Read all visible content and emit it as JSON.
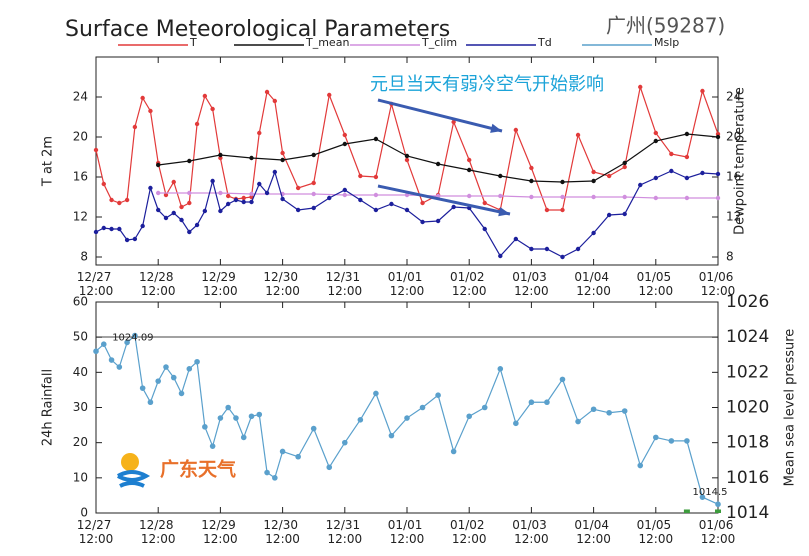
{
  "chart_data": [
    {
      "type": "line",
      "title": "Surface Meteorological Parameters",
      "subtitle": "广州(59287)",
      "annotation": "元旦当天有弱冷空气开始影响",
      "ylabel": "T at 2m",
      "y2label": "Dewpoint temperature",
      "xlim": [
        0,
        10
      ],
      "xticks": [
        {
          "value": 0,
          "label": "12/27 12:00"
        },
        {
          "value": 1,
          "label": "12/28 12:00"
        },
        {
          "value": 2,
          "label": "12/29 12:00"
        },
        {
          "value": 3,
          "label": "12/30 12:00"
        },
        {
          "value": 4,
          "label": "12/31 12:00"
        },
        {
          "value": 5,
          "label": "01/01 12:00"
        },
        {
          "value": 6,
          "label": "01/02 12:00"
        },
        {
          "value": 7,
          "label": "01/03 12:00"
        },
        {
          "value": 8,
          "label": "01/04 12:00"
        },
        {
          "value": 9,
          "label": "01/05 12:00"
        },
        {
          "value": 10,
          "label": "01/06 12:00"
        }
      ],
      "ylim": [
        7.2,
        28
      ],
      "yticks": [
        8,
        12,
        16,
        20,
        24
      ],
      "y2lim": [
        7.2,
        28
      ],
      "y2ticks": [
        8,
        12,
        16,
        20,
        24
      ],
      "series": [
        {
          "name": "T",
          "color": "#e23a3a",
          "x": [
            0,
            0.125,
            0.25,
            0.375,
            0.5,
            0.625,
            0.75,
            0.875,
            1,
            1.125,
            1.25,
            1.375,
            1.5,
            1.625,
            1.75,
            1.875,
            2,
            2.125,
            2.25,
            2.375,
            2.5,
            2.625,
            2.75,
            2.875,
            3,
            3.25,
            3.5,
            3.75,
            4,
            4.25,
            4.5,
            4.75,
            5,
            5.25,
            5.5,
            5.75,
            6,
            6.25,
            6.5,
            6.75,
            7,
            7.25,
            7.5,
            7.75,
            8,
            8.25,
            8.5,
            8.75,
            9,
            9.25,
            9.5,
            9.75,
            10
          ],
          "values": [
            18.7,
            15.3,
            13.7,
            13.4,
            13.7,
            21.0,
            23.9,
            22.6,
            17.4,
            14.2,
            15.5,
            13.0,
            13.4,
            21.3,
            24.1,
            22.8,
            17.9,
            14.1,
            13.8,
            13.9,
            14.0,
            20.4,
            24.5,
            23.6,
            18.4,
            14.9,
            15.4,
            24.2,
            20.2,
            16.1,
            16.0,
            23.3,
            17.7,
            13.4,
            14.2,
            21.5,
            17.7,
            13.4,
            12.7,
            20.7,
            16.9,
            12.7,
            12.7,
            20.2,
            16.5,
            16.1,
            17.0,
            25.0,
            20.4,
            18.3,
            18.0,
            24.6,
            20.3
          ]
        },
        {
          "name": "T_mean",
          "color": "#111111",
          "x": [
            1,
            1.5,
            2,
            2.5,
            3,
            3.5,
            4,
            4.5,
            5,
            5.5,
            6,
            6.5,
            7,
            7.5,
            8,
            8.5,
            9,
            9.5,
            10
          ],
          "values": [
            17.2,
            17.6,
            18.2,
            17.9,
            17.7,
            18.2,
            19.3,
            19.8,
            18.1,
            17.3,
            16.7,
            16.1,
            15.6,
            15.5,
            15.6,
            17.4,
            19.6,
            20.3,
            20.0
          ]
        },
        {
          "name": "T_clim",
          "color": "#d08ede",
          "x": [
            1,
            1.5,
            2,
            2.5,
            3,
            3.5,
            4,
            4.5,
            5,
            5.5,
            6,
            6.5,
            7,
            7.5,
            8,
            8.5,
            9,
            9.5,
            10
          ],
          "values": [
            14.4,
            14.4,
            14.4,
            14.3,
            14.3,
            14.3,
            14.2,
            14.2,
            14.2,
            14.1,
            14.1,
            14.1,
            14.0,
            14.0,
            14.0,
            14.0,
            13.9,
            13.9,
            13.9
          ]
        },
        {
          "name": "Td",
          "color": "#1c1f9c",
          "x": [
            0,
            0.125,
            0.25,
            0.375,
            0.5,
            0.625,
            0.75,
            0.875,
            1,
            1.125,
            1.25,
            1.375,
            1.5,
            1.625,
            1.75,
            1.875,
            2,
            2.125,
            2.25,
            2.375,
            2.5,
            2.625,
            2.75,
            2.875,
            3,
            3.25,
            3.5,
            3.75,
            4,
            4.25,
            4.5,
            4.75,
            5,
            5.25,
            5.5,
            5.75,
            6,
            6.25,
            6.5,
            6.75,
            7,
            7.25,
            7.5,
            7.75,
            8,
            8.25,
            8.5,
            8.75,
            9,
            9.25,
            9.5,
            9.75,
            10
          ],
          "values": [
            10.5,
            10.9,
            10.8,
            10.8,
            9.7,
            9.8,
            11.1,
            14.9,
            12.7,
            11.9,
            12.4,
            11.7,
            10.5,
            11.2,
            12.6,
            15.6,
            12.6,
            13.3,
            13.7,
            13.5,
            13.5,
            15.3,
            14.4,
            16.5,
            13.8,
            12.7,
            12.9,
            13.9,
            14.7,
            13.7,
            12.7,
            13.3,
            12.7,
            11.5,
            11.6,
            13.0,
            12.9,
            10.8,
            8.1,
            9.8,
            8.8,
            8.8,
            8.0,
            8.8,
            10.4,
            12.2,
            12.3,
            15.2,
            15.9,
            16.6,
            15.9,
            16.4,
            16.3
          ]
        }
      ]
    },
    {
      "type": "line",
      "ylabel": "24h Rainfall",
      "y2label": "Mean sea level pressure",
      "max_label": "1024.09",
      "min_label": "1014.5",
      "xlim": [
        0,
        10
      ],
      "xticks": [
        {
          "value": 0,
          "label": "12/27 12:00"
        },
        {
          "value": 1,
          "label": "12/28 12:00"
        },
        {
          "value": 2,
          "label": "12/29 12:00"
        },
        {
          "value": 3,
          "label": "12/30 12:00"
        },
        {
          "value": 4,
          "label": "12/31 12:00"
        },
        {
          "value": 5,
          "label": "01/01 12:00"
        },
        {
          "value": 6,
          "label": "01/02 12:00"
        },
        {
          "value": 7,
          "label": "01/03 12:00"
        },
        {
          "value": 8,
          "label": "01/04 12:00"
        },
        {
          "value": 9,
          "label": "01/05 12:00"
        },
        {
          "value": 10,
          "label": "01/06 12:00"
        }
      ],
      "ylim": [
        0,
        60
      ],
      "yticks": [
        0,
        10,
        20,
        30,
        40,
        50,
        60
      ],
      "y2lim": [
        1014,
        1026
      ],
      "y2ticks": [
        1014,
        1016,
        1018,
        1020,
        1022,
        1024,
        1026
      ],
      "series": [
        {
          "type": "bar",
          "color": "#3c9c3c",
          "x": [
            9.5,
            10
          ],
          "values": [
            1,
            1
          ]
        },
        {
          "name": "Mslp",
          "color": "#5aa0cc",
          "axis": "y2",
          "x": [
            0,
            0.125,
            0.25,
            0.375,
            0.5,
            0.625,
            0.75,
            0.875,
            1,
            1.125,
            1.25,
            1.375,
            1.5,
            1.625,
            1.75,
            1.875,
            2,
            2.125,
            2.25,
            2.375,
            2.5,
            2.625,
            2.75,
            2.875,
            3,
            3.25,
            3.5,
            3.75,
            4,
            4.25,
            4.5,
            4.75,
            5,
            5.25,
            5.5,
            5.75,
            6,
            6.25,
            6.5,
            6.75,
            7,
            7.25,
            7.5,
            7.75,
            8,
            8.25,
            8.5,
            8.75,
            9,
            9.25,
            9.5,
            9.75,
            10
          ],
          "values": [
            1023.2,
            1023.6,
            1022.7,
            1022.3,
            1023.7,
            1024.09,
            1021.1,
            1020.3,
            1021.5,
            1022.3,
            1021.7,
            1020.8,
            1022.2,
            1022.6,
            1018.9,
            1017.8,
            1019.4,
            1020.0,
            1019.4,
            1018.3,
            1019.5,
            1019.6,
            1016.3,
            1016.0,
            1017.5,
            1017.2,
            1018.8,
            1016.6,
            1018.0,
            1019.3,
            1020.8,
            1018.4,
            1019.4,
            1020.0,
            1020.7,
            1017.5,
            1019.5,
            1020.0,
            1022.2,
            1019.1,
            1020.3,
            1020.3,
            1021.6,
            1019.2,
            1019.9,
            1019.7,
            1019.8,
            1016.7,
            1018.3,
            1018.1,
            1018.1,
            1014.9,
            1014.5
          ]
        }
      ]
    }
  ],
  "logo": {
    "text": "广东天气"
  }
}
